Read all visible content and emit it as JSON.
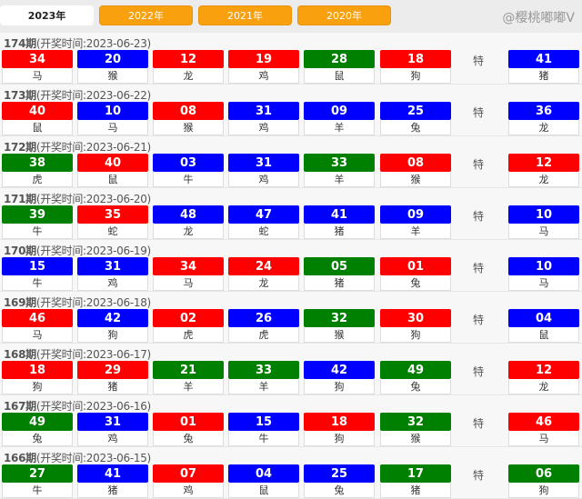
{
  "tabs": [
    {
      "label": "2023年",
      "active": true
    },
    {
      "label": "2022年"
    },
    {
      "label": "2021年"
    },
    {
      "label": "2020年"
    }
  ],
  "colors": {
    "red": "#ff0000",
    "blue": "#0000ff",
    "green": "#008000",
    "tab_orange": "#f9a00f"
  },
  "special_label": "特",
  "draws": [
    {
      "period": "174期",
      "time": "(开奖时间:2023-06-23)",
      "balls": [
        [
          "34",
          "red",
          "马"
        ],
        [
          "20",
          "blue",
          "猴"
        ],
        [
          "12",
          "red",
          "龙"
        ],
        [
          "19",
          "red",
          "鸡"
        ],
        [
          "28",
          "green",
          "鼠"
        ],
        [
          "18",
          "red",
          "狗"
        ]
      ],
      "special": [
        "41",
        "blue",
        "猪"
      ]
    },
    {
      "period": "173期",
      "time": "(开奖时间:2023-06-22)",
      "balls": [
        [
          "40",
          "red",
          "鼠"
        ],
        [
          "10",
          "blue",
          "马"
        ],
        [
          "08",
          "red",
          "猴"
        ],
        [
          "31",
          "blue",
          "鸡"
        ],
        [
          "09",
          "blue",
          "羊"
        ],
        [
          "25",
          "blue",
          "兔"
        ]
      ],
      "special": [
        "36",
        "blue",
        "龙"
      ]
    },
    {
      "period": "172期",
      "time": "(开奖时间:2023-06-21)",
      "balls": [
        [
          "38",
          "green",
          "虎"
        ],
        [
          "40",
          "red",
          "鼠"
        ],
        [
          "03",
          "blue",
          "牛"
        ],
        [
          "31",
          "blue",
          "鸡"
        ],
        [
          "33",
          "green",
          "羊"
        ],
        [
          "08",
          "red",
          "猴"
        ]
      ],
      "special": [
        "12",
        "red",
        "龙"
      ]
    },
    {
      "period": "171期",
      "time": "(开奖时间:2023-06-20)",
      "balls": [
        [
          "39",
          "green",
          "牛"
        ],
        [
          "35",
          "red",
          "蛇"
        ],
        [
          "48",
          "blue",
          "龙"
        ],
        [
          "47",
          "blue",
          "蛇"
        ],
        [
          "41",
          "blue",
          "猪"
        ],
        [
          "09",
          "blue",
          "羊"
        ]
      ],
      "special": [
        "10",
        "blue",
        "马"
      ]
    },
    {
      "period": "170期",
      "time": "(开奖时间:2023-06-19)",
      "balls": [
        [
          "15",
          "blue",
          "牛"
        ],
        [
          "31",
          "blue",
          "鸡"
        ],
        [
          "34",
          "red",
          "马"
        ],
        [
          "24",
          "red",
          "龙"
        ],
        [
          "05",
          "green",
          "猪"
        ],
        [
          "01",
          "red",
          "兔"
        ]
      ],
      "special": [
        "10",
        "blue",
        "马"
      ]
    },
    {
      "period": "169期",
      "time": "(开奖时间:2023-06-18)",
      "balls": [
        [
          "46",
          "red",
          "马"
        ],
        [
          "42",
          "blue",
          "狗"
        ],
        [
          "02",
          "red",
          "虎"
        ],
        [
          "26",
          "blue",
          "虎"
        ],
        [
          "32",
          "green",
          "猴"
        ],
        [
          "30",
          "red",
          "狗"
        ]
      ],
      "special": [
        "04",
        "blue",
        "鼠"
      ]
    },
    {
      "period": "168期",
      "time": "(开奖时间:2023-06-17)",
      "balls": [
        [
          "18",
          "red",
          "狗"
        ],
        [
          "29",
          "red",
          "猪"
        ],
        [
          "21",
          "green",
          "羊"
        ],
        [
          "33",
          "green",
          "羊"
        ],
        [
          "42",
          "blue",
          "狗"
        ],
        [
          "49",
          "green",
          "兔"
        ]
      ],
      "special": [
        "12",
        "red",
        "龙"
      ]
    },
    {
      "period": "167期",
      "time": "(开奖时间:2023-06-16)",
      "balls": [
        [
          "49",
          "green",
          "兔"
        ],
        [
          "31",
          "blue",
          "鸡"
        ],
        [
          "01",
          "red",
          "兔"
        ],
        [
          "15",
          "blue",
          "牛"
        ],
        [
          "18",
          "red",
          "狗"
        ],
        [
          "32",
          "green",
          "猴"
        ]
      ],
      "special": [
        "46",
        "red",
        "马"
      ]
    },
    {
      "period": "166期",
      "time": "(开奖时间:2023-06-15)",
      "balls": [
        [
          "27",
          "green",
          "牛"
        ],
        [
          "41",
          "blue",
          "猪"
        ],
        [
          "07",
          "red",
          "鸡"
        ],
        [
          "04",
          "blue",
          "鼠"
        ],
        [
          "25",
          "blue",
          "兔"
        ],
        [
          "17",
          "green",
          "猪"
        ]
      ],
      "special": [
        "06",
        "green",
        "狗"
      ]
    }
  ],
  "watermark": "@樱桃嘟嘟V"
}
